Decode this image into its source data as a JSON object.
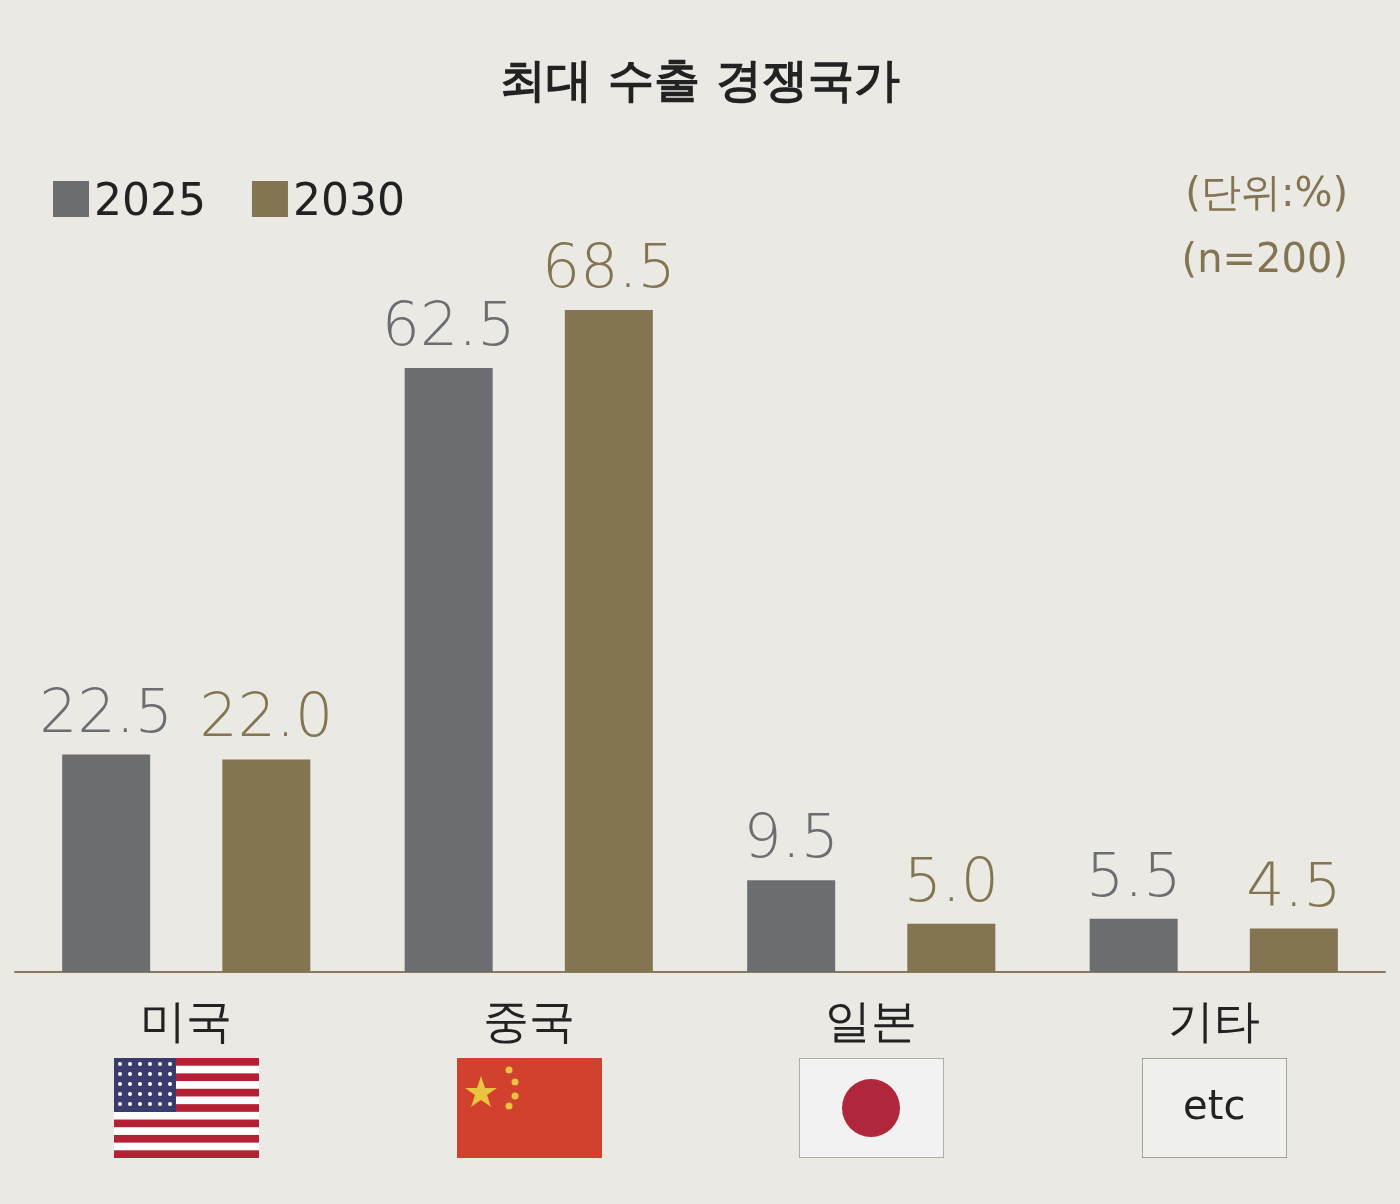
{
  "chart_data": {
    "type": "bar",
    "title": "최대 수출 경쟁국가",
    "categories": [
      "미국",
      "중국",
      "일본",
      "기타"
    ],
    "series": [
      {
        "name": "2025",
        "color": "#6c6d70",
        "values": [
          22.5,
          62.5,
          9.5,
          5.5
        ],
        "value_labels": [
          "22.5",
          "62.5",
          "9.5",
          "5.5"
        ]
      },
      {
        "name": "2030",
        "color": "#837552",
        "values": [
          22.0,
          68.5,
          5.0,
          4.5
        ],
        "value_labels": [
          "22.0",
          "68.5",
          "5.0",
          "4.5"
        ]
      }
    ],
    "tick_labels": "x",
    "grid": false,
    "legend": "top left",
    "annotations": [
      "(단위:%)",
      "(n=200)",
      "etc"
    ]
  }
}
